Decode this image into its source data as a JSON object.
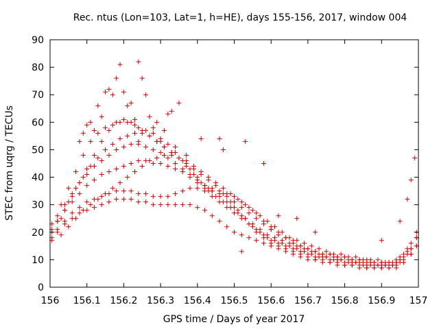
{
  "chart_data": {
    "type": "scatter",
    "title": "Rec. ntus (Lon=103, Lat=1, h=HE), days 155-156, 2017, window 004",
    "xlabel": "GPS time / Days of year 2017",
    "ylabel": "STEC from uqrg / TECUs",
    "xlim": [
      156,
      157
    ],
    "ylim": [
      0,
      90
    ],
    "xticks": [
      156,
      156.1,
      156.2,
      156.3,
      156.4,
      156.5,
      156.6,
      156.7,
      156.8,
      156.9,
      157
    ],
    "xtick_labels": [
      "156",
      "156.1",
      "156.2",
      "156.3",
      "156.4",
      "156.5",
      "156.6",
      "156.7",
      "156.8",
      "156.9",
      "157"
    ],
    "yticks": [
      0,
      10,
      20,
      30,
      40,
      50,
      60,
      70,
      80,
      90
    ],
    "ytick_labels": [
      "0",
      "10",
      "20",
      "30",
      "40",
      "50",
      "60",
      "70",
      "80",
      "90"
    ],
    "grid": false,
    "legend": "none",
    "marker": "plus",
    "color": "#cc0000",
    "series": [
      {
        "x": [
          156.005,
          156.02,
          156.04,
          156.06,
          156.08,
          156.1,
          156.12,
          156.14,
          156.16,
          156.18,
          156.2,
          156.22,
          156.24,
          156.26,
          156.28,
          156.3,
          156.32,
          156.34,
          156.36,
          156.38,
          156.4,
          156.42,
          156.44,
          156.46,
          156.48,
          156.5,
          156.52,
          156.54,
          156.56,
          156.58,
          156.6,
          156.62,
          156.64,
          156.66,
          156.68,
          156.7,
          156.72,
          156.74,
          156.76,
          156.78,
          156.8,
          156.82,
          156.84,
          156.86,
          156.88,
          156.9,
          156.92,
          156.94,
          156.96,
          156.98,
          156.995
        ],
        "y": [
          20,
          24,
          28,
          33,
          38,
          43,
          48,
          53,
          57,
          60,
          61,
          60,
          58,
          57,
          56,
          54,
          52,
          49,
          46,
          43,
          40,
          37,
          35,
          33,
          31,
          29,
          26,
          23,
          20,
          18,
          16,
          15,
          14,
          13,
          12,
          11,
          10,
          10,
          9,
          9,
          8,
          8,
          8,
          7,
          7,
          7,
          7,
          8,
          9,
          12,
          15
        ]
      },
      {
        "x": [
          156.005,
          156.02,
          156.04,
          156.06,
          156.08,
          156.1,
          156.12,
          156.14,
          156.16,
          156.18,
          156.2,
          156.22,
          156.24,
          156.26,
          156.28,
          156.3,
          156.32,
          156.34,
          156.36,
          156.38,
          156.4,
          156.42,
          156.44,
          156.46,
          156.48,
          156.5,
          156.52,
          156.54,
          156.56,
          156.58,
          156.6,
          156.62,
          156.64,
          156.66,
          156.68,
          156.7,
          156.72,
          156.74,
          156.76,
          156.78,
          156.8,
          156.82,
          156.84,
          156.86,
          156.88,
          156.9,
          156.92,
          156.94,
          156.96,
          156.98,
          156.995
        ],
        "y": [
          23,
          26,
          30,
          34,
          38,
          41,
          44,
          46,
          48,
          50,
          51,
          52,
          52,
          51,
          50,
          49,
          47,
          45,
          43,
          41,
          39,
          37,
          36,
          35,
          34,
          33,
          31,
          29,
          27,
          24,
          22,
          20,
          18,
          17,
          15,
          14,
          13,
          12,
          12,
          11,
          11,
          10,
          10,
          10,
          9,
          9,
          9,
          9,
          10,
          14,
          18
        ]
      },
      {
        "x": [
          156.005,
          156.02,
          156.04,
          156.06,
          156.08,
          156.1,
          156.12,
          156.14,
          156.16,
          156.18,
          156.2,
          156.22,
          156.24,
          156.26,
          156.28,
          156.3,
          156.32,
          156.34,
          156.36,
          156.38,
          156.4,
          156.42,
          156.44,
          156.46,
          156.48,
          156.5,
          156.52,
          156.54,
          156.56,
          156.58,
          156.6,
          156.62,
          156.64,
          156.66,
          156.68,
          156.7,
          156.72,
          156.74,
          156.76,
          156.78,
          156.8,
          156.82,
          156.84,
          156.86,
          156.88,
          156.9,
          156.92,
          156.94,
          156.96,
          156.98,
          156.995
        ],
        "y": [
          21,
          24,
          28,
          31,
          34,
          37,
          39,
          41,
          42,
          43,
          44,
          45,
          46,
          46,
          45,
          45,
          44,
          43,
          42,
          40,
          38,
          36,
          35,
          34,
          33,
          31,
          29,
          27,
          25,
          23,
          21,
          19,
          18,
          16,
          15,
          14,
          13,
          12,
          12,
          11,
          11,
          10,
          10,
          9,
          9,
          9,
          9,
          10,
          12,
          16,
          20
        ]
      },
      {
        "x": [
          156.005,
          156.02,
          156.04,
          156.06,
          156.08,
          156.1,
          156.12,
          156.14,
          156.16,
          156.18,
          156.2,
          156.22,
          156.24,
          156.26,
          156.28,
          156.3,
          156.32,
          156.34,
          156.36,
          156.38,
          156.4,
          156.42,
          156.44,
          156.46,
          156.48,
          156.5,
          156.52,
          156.54,
          156.56,
          156.58,
          156.6,
          156.62,
          156.64,
          156.66,
          156.68,
          156.7,
          156.72,
          156.74,
          156.76,
          156.78,
          156.8,
          156.82,
          156.84,
          156.86,
          156.88,
          156.9,
          156.92,
          156.94,
          156.96,
          156.98,
          156.995
        ],
        "y": [
          18,
          21,
          24,
          27,
          29,
          31,
          32,
          33,
          34,
          35,
          35,
          35,
          34,
          34,
          33,
          33,
          33,
          34,
          35,
          36,
          36,
          35,
          33,
          31,
          29,
          27,
          25,
          23,
          21,
          19,
          17,
          16,
          15,
          14,
          13,
          12,
          11,
          11,
          10,
          10,
          9,
          9,
          9,
          8,
          8,
          8,
          8,
          9,
          11,
          14,
          18
        ]
      },
      {
        "x": [
          156.005,
          156.02,
          156.04,
          156.06,
          156.08,
          156.1,
          156.12,
          156.14,
          156.16,
          156.18,
          156.2,
          156.22,
          156.24,
          156.26,
          156.28,
          156.3,
          156.32,
          156.34,
          156.36,
          156.38,
          156.4,
          156.42,
          156.44,
          156.46,
          156.48,
          156.5,
          156.52,
          156.54,
          156.56,
          156.58,
          156.6,
          156.62,
          156.64,
          156.66,
          156.68,
          156.7,
          156.72,
          156.74,
          156.76,
          156.78,
          156.8,
          156.82,
          156.84,
          156.86,
          156.88,
          156.9,
          156.92,
          156.94,
          156.96,
          156.98,
          156.995
        ],
        "y": [
          17,
          20,
          23,
          25,
          27,
          28,
          29,
          30,
          31,
          32,
          32,
          32,
          31,
          31,
          30,
          30,
          30,
          30,
          30,
          30,
          29,
          28,
          26,
          24,
          22,
          20,
          19,
          18,
          17,
          16,
          15,
          14,
          13,
          12,
          11,
          10,
          10,
          9,
          9,
          8,
          8,
          8,
          7,
          7,
          7,
          7,
          7,
          7,
          9,
          12,
          15
        ]
      },
      {
        "x": [
          156.03,
          156.05,
          156.07,
          156.09,
          156.11,
          156.13,
          156.15,
          156.17,
          156.19,
          156.21,
          156.23,
          156.25,
          156.27,
          156.29,
          156.31,
          156.33,
          156.35,
          156.37,
          156.39,
          156.41,
          156.43,
          156.45,
          156.47,
          156.49,
          156.51,
          156.53,
          156.55,
          156.57,
          156.59,
          156.61,
          156.63,
          156.65,
          156.67,
          156.69,
          156.71,
          156.73,
          156.75,
          156.77,
          156.79,
          156.81,
          156.83,
          156.85,
          156.87,
          156.89,
          156.91,
          156.93,
          156.95,
          156.97
        ],
        "y": [
          25,
          31,
          36,
          40,
          44,
          47,
          50,
          52,
          54,
          55,
          56,
          56,
          55,
          53,
          51,
          49,
          47,
          45,
          43,
          41,
          39,
          37,
          34,
          31,
          28,
          25,
          22,
          20,
          18,
          17,
          16,
          15,
          14,
          13,
          12,
          11,
          11,
          10,
          10,
          9,
          9,
          8,
          8,
          8,
          8,
          8,
          10,
          13
        ]
      },
      {
        "x": [
          156.03,
          156.05,
          156.07,
          156.09,
          156.11,
          156.13,
          156.15,
          156.17,
          156.19,
          156.21,
          156.23,
          156.25,
          156.27,
          156.29,
          156.31,
          156.33,
          156.35,
          156.37,
          156.39,
          156.41,
          156.43,
          156.45,
          156.47,
          156.49,
          156.51,
          156.53,
          156.55,
          156.57,
          156.59,
          156.61,
          156.63,
          156.65,
          156.67,
          156.69,
          156.71,
          156.73,
          156.75,
          156.77,
          156.79,
          156.81,
          156.83,
          156.85,
          156.87,
          156.89,
          156.91,
          156.93,
          156.95,
          156.97
        ],
        "y": [
          30,
          36,
          42,
          48,
          53,
          56,
          58,
          59,
          60,
          60,
          59,
          57,
          55,
          53,
          51,
          49,
          47,
          44,
          41,
          38,
          35,
          33,
          31,
          29,
          27,
          25,
          23,
          21,
          19,
          18,
          17,
          16,
          15,
          14,
          13,
          12,
          11,
          11,
          10,
          10,
          9,
          9,
          9,
          8,
          8,
          8,
          9,
          12
        ]
      },
      {
        "x": [
          156.03,
          156.05,
          156.07,
          156.09,
          156.11,
          156.13,
          156.15,
          156.17,
          156.19,
          156.21,
          156.23,
          156.25,
          156.27,
          156.29,
          156.31,
          156.33,
          156.35,
          156.37,
          156.39,
          156.41,
          156.43,
          156.45,
          156.47,
          156.49,
          156.51,
          156.53,
          156.55,
          156.57,
          156.59,
          156.61,
          156.63,
          156.65,
          156.67,
          156.69,
          156.71,
          156.73,
          156.75,
          156.77,
          156.79,
          156.81,
          156.83,
          156.85,
          156.87,
          156.89,
          156.91,
          156.93,
          156.95,
          156.97
        ],
        "y": [
          19,
          22,
          25,
          28,
          30,
          32,
          34,
          36,
          38,
          40,
          42,
          44,
          46,
          47,
          48,
          48,
          47,
          46,
          44,
          42,
          40,
          38,
          36,
          34,
          32,
          30,
          28,
          26,
          24,
          22,
          20,
          18,
          17,
          16,
          15,
          14,
          13,
          12,
          12,
          11,
          11,
          10,
          10,
          10,
          9,
          9,
          11,
          14
        ]
      },
      {
        "x": [
          156.17,
          156.18,
          156.19,
          156.2,
          156.21,
          156.23,
          156.24,
          156.25,
          156.26,
          156.28,
          156.3,
          156.32,
          156.33,
          156.35,
          156.41,
          156.46,
          156.47,
          156.53,
          156.58,
          156.62,
          156.67,
          156.72,
          156.9,
          156.95,
          156.97,
          156.99
        ],
        "y": [
          70,
          76,
          81,
          71,
          66,
          61,
          82,
          76,
          70,
          58,
          53,
          63,
          64,
          67,
          54,
          54,
          50,
          53,
          45,
          26,
          25,
          20,
          17,
          24,
          32,
          47
        ]
      },
      {
        "x": [
          156.1,
          156.11,
          156.12,
          156.13,
          156.14,
          156.15,
          156.16,
          156.08,
          156.09,
          156.22,
          156.24,
          156.27,
          156.29,
          156.31,
          156.34,
          156.37,
          156.43,
          156.52,
          156.6,
          156.98
        ],
        "y": [
          59,
          60,
          57,
          66,
          62,
          71,
          72,
          53,
          56,
          67,
          53,
          62,
          60,
          57,
          51,
          48,
          36,
          13,
          21,
          39
        ]
      }
    ]
  }
}
